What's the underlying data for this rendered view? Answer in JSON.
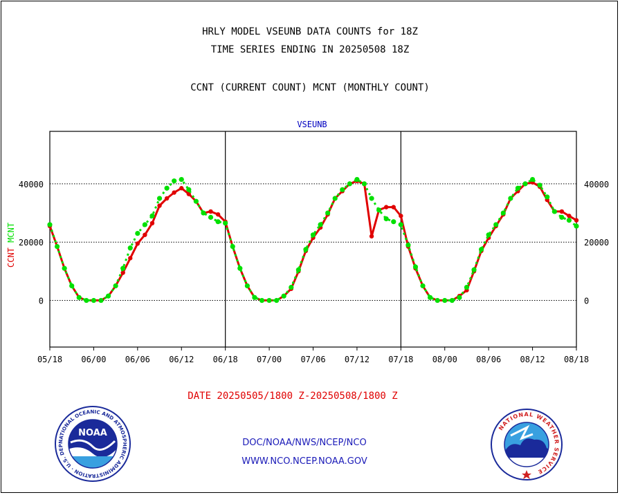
{
  "header": {
    "line1": "HRLY MODEL VSEUNB DATA COUNTS for 18Z",
    "line2": "TIME SERIES ENDING IN 20250508 18Z",
    "line3": "CCNT (CURRENT COUNT) MCNT (MONTHLY COUNT)"
  },
  "footer": {
    "date_range": "DATE 20250505/1800 Z-20250508/1800 Z",
    "org": "DOC/NOAA/NWS/NCEP/NCO",
    "url": "WWW.NCO.NCEP.NOAA.GOV"
  },
  "logos": {
    "noaa_center": "NOAA",
    "noaa_ring": "NATIONAL OCEANIC AND ATMOSPHERIC ADMINISTRATION · U.S. DEPARTMENT OF COMMERCE ·",
    "nws_ring": "NATIONAL WEATHER SERVICE"
  },
  "colors": {
    "ccnt": "#e00000",
    "mcnt": "#00e000",
    "title_blue": "#0000c0"
  },
  "chart_data": {
    "type": "line",
    "title": "VSEUNB",
    "ylabel_parts": [
      "CCNT",
      "MCNT"
    ],
    "ylim": [
      -16000,
      58000
    ],
    "xlim": [
      0,
      72
    ],
    "yticks": [
      0,
      20000,
      40000
    ],
    "ytick_labels": [
      "0",
      "20000",
      "40000"
    ],
    "xticks": [
      0,
      6,
      12,
      18,
      24,
      30,
      36,
      42,
      48,
      54,
      60,
      66,
      72
    ],
    "xtick_labels": [
      "05/18",
      "06/00",
      "06/06",
      "06/12",
      "06/18",
      "07/00",
      "07/06",
      "07/12",
      "07/18",
      "08/00",
      "08/06",
      "08/12",
      "08/18"
    ],
    "x_unit": "hours from 05/18",
    "day_separators": [
      24,
      48
    ],
    "grid": "dotted horizontal at 0, 20000, 40000",
    "series": [
      {
        "name": "CCNT",
        "color": "#e00000",
        "values": [
          25500,
          18500,
          11000,
          5000,
          1000,
          0,
          0,
          0,
          1500,
          5000,
          9500,
          14500,
          19500,
          22500,
          26500,
          32500,
          35000,
          37000,
          38500,
          36500,
          34000,
          30000,
          30500,
          29500,
          27000,
          18500,
          11000,
          5000,
          1000,
          0,
          0,
          0,
          1500,
          4000,
          10000,
          17000,
          21500,
          25000,
          29500,
          35000,
          37500,
          40000,
          41000,
          40000,
          22000,
          31000,
          32000,
          32000,
          29000,
          18500,
          11000,
          5000,
          1000,
          0,
          0,
          0,
          1500,
          3500,
          10000,
          17000,
          21500,
          25500,
          29500,
          35000,
          37500,
          40000,
          40500,
          39000,
          34500,
          30500,
          30500,
          29000,
          27500
        ]
      },
      {
        "name": "MCNT",
        "color": "#00e000",
        "values": [
          26000,
          18500,
          11000,
          5000,
          1000,
          0,
          0,
          0,
          1500,
          5000,
          11000,
          18000,
          23000,
          26000,
          29000,
          35000,
          38500,
          41000,
          41500,
          38000,
          34000,
          30000,
          28500,
          27000,
          26500,
          18500,
          11000,
          5000,
          1000,
          0,
          0,
          0,
          1500,
          4500,
          10500,
          17500,
          22500,
          26000,
          30000,
          35000,
          38000,
          40000,
          41500,
          40000,
          35000,
          31000,
          28000,
          27000,
          26000,
          19000,
          11500,
          5000,
          1000,
          0,
          0,
          0,
          1000,
          4500,
          10500,
          17500,
          22500,
          26000,
          30000,
          35000,
          38500,
          40000,
          41500,
          39500,
          35500,
          30500,
          28500,
          27500,
          25500
        ]
      }
    ]
  }
}
